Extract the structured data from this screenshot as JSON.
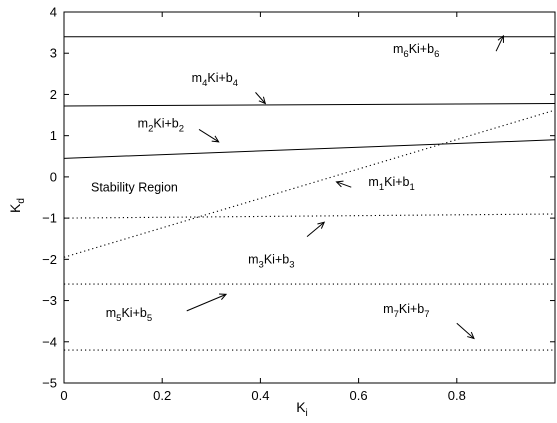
{
  "chart_data": {
    "type": "line",
    "title": "",
    "xlabel": {
      "main": "K",
      "sub": "i"
    },
    "ylabel": {
      "main": "K",
      "sub": "d"
    },
    "xlim": [
      0,
      1
    ],
    "ylim": [
      -5,
      4
    ],
    "x_ticks": [
      0,
      0.2,
      0.4,
      0.6,
      0.8
    ],
    "x_tick_labels": [
      "0",
      "0.2",
      "0.4",
      "0.6",
      "0.8"
    ],
    "y_ticks": [
      -5,
      -4,
      -3,
      -2,
      -1,
      0,
      1,
      2,
      3,
      4
    ],
    "y_tick_labels": [
      "−5",
      "−4",
      "−3",
      "−2",
      "−1",
      "0",
      "1",
      "2",
      "3",
      "4"
    ],
    "grid": false,
    "region_label": "Stability Region",
    "series": [
      {
        "style": "solid",
        "x": [
          0,
          1
        ],
        "y": [
          3.4,
          3.4
        ]
      },
      {
        "style": "solid",
        "x": [
          0,
          1
        ],
        "y": [
          1.72,
          1.78
        ]
      },
      {
        "style": "solid",
        "x": [
          0,
          1
        ],
        "y": [
          0.45,
          0.9
        ]
      },
      {
        "style": "dotted",
        "x": [
          0,
          1
        ],
        "y": [
          -1.95,
          1.62
        ]
      },
      {
        "style": "dotted",
        "x": [
          0,
          1
        ],
        "y": [
          -1.0,
          -0.9
        ]
      },
      {
        "style": "dotted",
        "x": [
          0,
          1
        ],
        "y": [
          -2.6,
          -2.6
        ]
      },
      {
        "style": "dotted",
        "x": [
          0,
          1
        ],
        "y": [
          -4.2,
          -4.2
        ]
      }
    ],
    "annotations": [
      {
        "m": "m",
        "ms": "4",
        "mid": "Ki+b",
        "bs": "4",
        "x": 0.26,
        "y": 2.3,
        "arrow": [
          0.39,
          2.05,
          0.41,
          1.78
        ]
      },
      {
        "m": "m",
        "ms": "6",
        "mid": "Ki+b",
        "bs": "6",
        "x": 0.67,
        "y": 3.0,
        "arrow": [
          0.88,
          3.05,
          0.895,
          3.42
        ]
      },
      {
        "m": "m",
        "ms": "2",
        "mid": "Ki+b",
        "bs": "2",
        "x": 0.15,
        "y": 1.2,
        "arrow": [
          0.275,
          1.15,
          0.315,
          0.85
        ]
      },
      {
        "m": "m",
        "ms": "1",
        "mid": "Ki+b",
        "bs": "1",
        "x": 0.62,
        "y": -0.22,
        "arrow": [
          0.585,
          -0.25,
          0.555,
          -0.12
        ]
      },
      {
        "m": "m",
        "ms": "3",
        "mid": "Ki+b",
        "bs": "3",
        "x": 0.375,
        "y": -2.1,
        "arrow": [
          0.495,
          -1.45,
          0.53,
          -1.1
        ]
      },
      {
        "m": "m",
        "ms": "5",
        "mid": "Ki+b",
        "bs": "5",
        "x": 0.085,
        "y": -3.4,
        "arrow": [
          0.25,
          -3.25,
          0.33,
          -2.85
        ]
      },
      {
        "m": "m",
        "ms": "7",
        "mid": "Ki+b",
        "bs": "7",
        "x": 0.65,
        "y": -3.3,
        "arrow": [
          0.8,
          -3.55,
          0.835,
          -3.92
        ]
      }
    ]
  }
}
